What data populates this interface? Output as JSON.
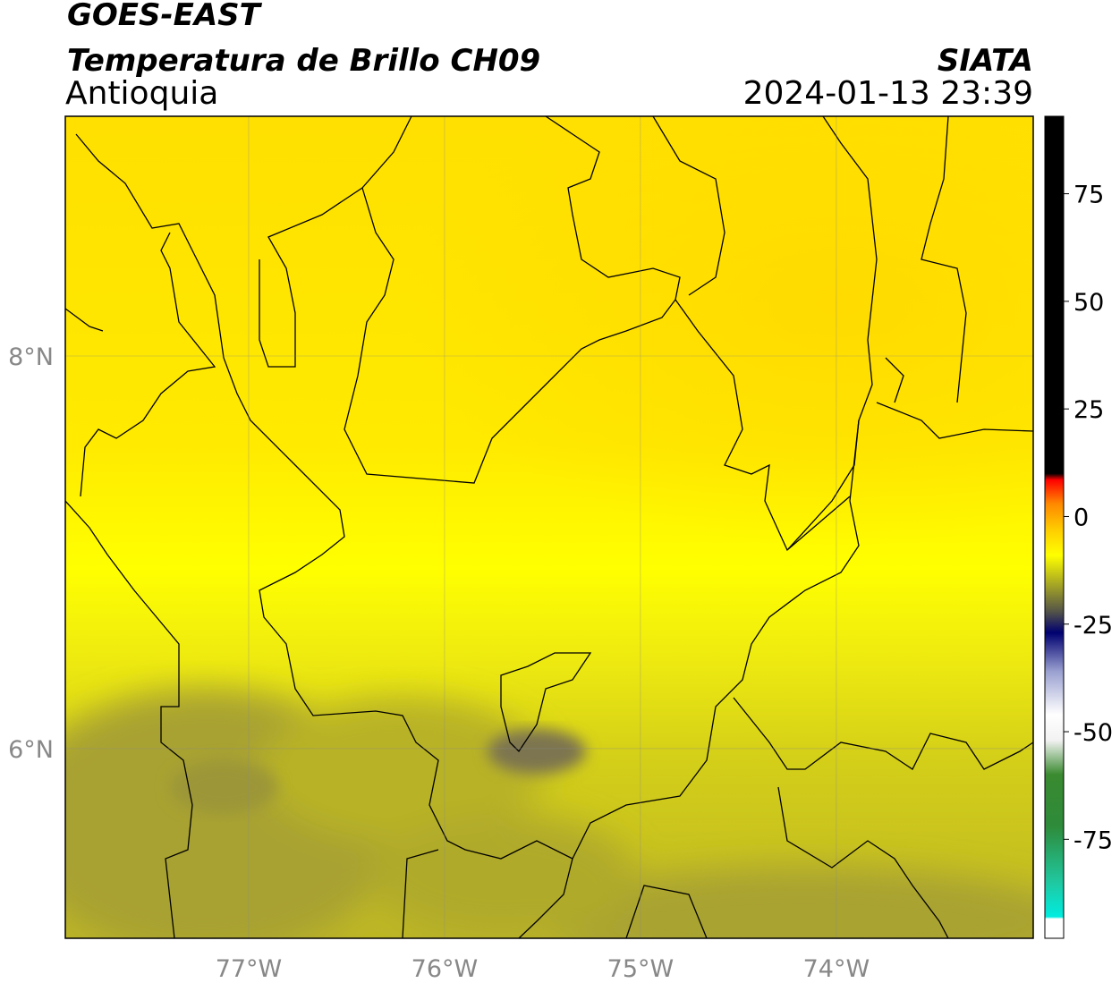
{
  "header": {
    "title": "GOES-EAST",
    "subtitle": "Temperatura de Brillo CH09",
    "region": "Antioquia",
    "source": "SIATA",
    "datetime": "2024-01-13 23:39"
  },
  "map": {
    "lonlim": [
      -77.936,
      -72.995
    ],
    "latlim": [
      5.034,
      9.221
    ],
    "lon_ticks": [
      {
        "value": -77,
        "label": "77°W"
      },
      {
        "value": -76,
        "label": "76°W"
      },
      {
        "value": -75,
        "label": "75°W"
      },
      {
        "value": -74,
        "label": "74°W"
      }
    ],
    "lat_ticks": [
      {
        "value": 6,
        "label": "6°N"
      },
      {
        "value": 8,
        "label": "8°N"
      }
    ],
    "grid": true
  },
  "colorbar": {
    "range": [
      -98,
      93
    ],
    "ticks": [
      -75,
      -50,
      -25,
      0,
      25,
      50,
      75
    ],
    "stops": [
      {
        "value": -98,
        "color": "#ffffff"
      },
      {
        "value": -93.5,
        "color": "#ffffff"
      },
      {
        "value": -93,
        "color": "#00ece0"
      },
      {
        "value": -85,
        "color": "#20c8a0"
      },
      {
        "value": -72,
        "color": "#2e8b3a"
      },
      {
        "value": -60,
        "color": "#3a8a30"
      },
      {
        "value": -52,
        "color": "#f2f2f2"
      },
      {
        "value": -46,
        "color": "#ffffff"
      },
      {
        "value": -36,
        "color": "#9aa0d0"
      },
      {
        "value": -27,
        "color": "#000070"
      },
      {
        "value": -22,
        "color": "#555548"
      },
      {
        "value": -15,
        "color": "#b0b020"
      },
      {
        "value": -9,
        "color": "#ffff00"
      },
      {
        "value": -3,
        "color": "#ffcc00"
      },
      {
        "value": 3,
        "color": "#ff8800"
      },
      {
        "value": 8.5,
        "color": "#ff0000"
      },
      {
        "value": 10,
        "color": "#000000"
      },
      {
        "value": 93,
        "color": "#000000"
      }
    ]
  }
}
